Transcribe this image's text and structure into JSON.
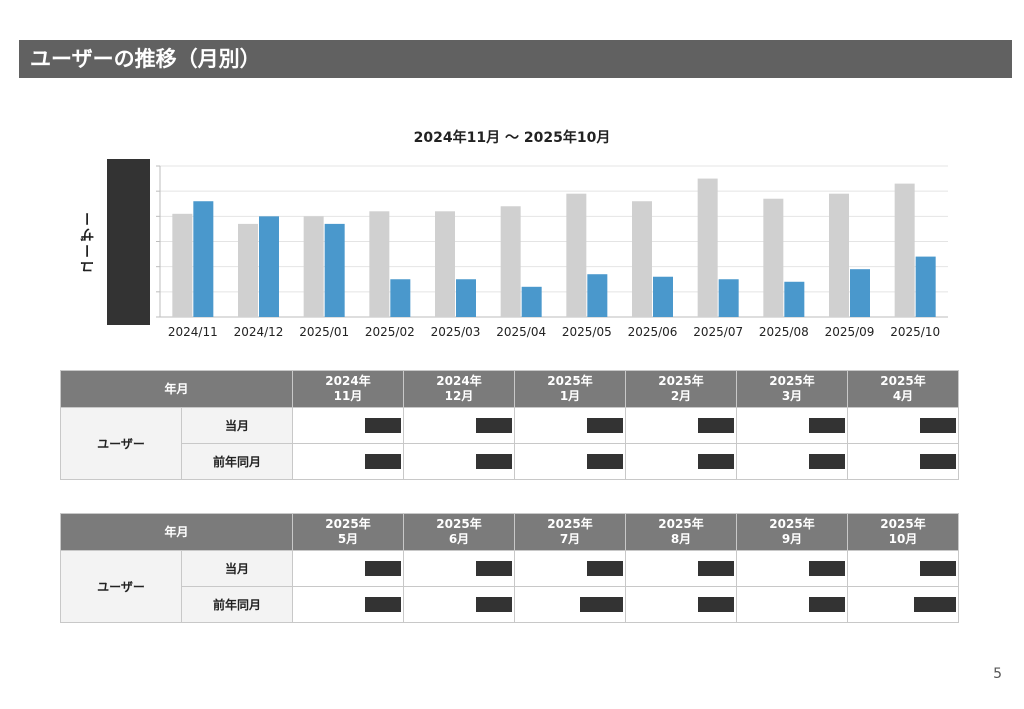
{
  "header": {
    "title": "ユーザーの推移（月別）"
  },
  "chart_data": {
    "type": "bar",
    "title": "2024年11月 ～ 2025年10月",
    "ylabel": "ユーザー",
    "categories": [
      "2024/11",
      "2024/12",
      "2025/01",
      "2025/02",
      "2025/03",
      "2025/04",
      "2025/05",
      "2025/06",
      "2025/07",
      "2025/08",
      "2025/09",
      "2025/10"
    ],
    "series": [
      {
        "values": [
          4.1,
          3.7,
          4.0,
          4.2,
          4.2,
          4.4,
          4.9,
          4.6,
          5.5,
          4.7,
          4.9,
          5.3
        ]
      },
      {
        "values": [
          4.6,
          4.0,
          3.7,
          1.5,
          1.5,
          1.2,
          1.7,
          1.6,
          1.5,
          1.4,
          1.9,
          2.4
        ]
      }
    ],
    "ylim": [
      0,
      6
    ],
    "grid": true,
    "colors": [
      "#d0d0d0",
      "#4a98cc"
    ]
  },
  "tables": [
    {
      "corner": "年月",
      "columns": [
        {
          "year": "2024年",
          "month": "11月"
        },
        {
          "year": "2024年",
          "month": "12月"
        },
        {
          "year": "2025年",
          "month": "1月"
        },
        {
          "year": "2025年",
          "month": "2月"
        },
        {
          "year": "2025年",
          "month": "3月"
        },
        {
          "year": "2025年",
          "month": "4月"
        }
      ],
      "row_group": "ユーザー",
      "rows": [
        {
          "label": "当月"
        },
        {
          "label": "前年同月"
        }
      ]
    },
    {
      "corner": "年月",
      "columns": [
        {
          "year": "2025年",
          "month": "5月"
        },
        {
          "year": "2025年",
          "month": "6月"
        },
        {
          "year": "2025年",
          "month": "7月"
        },
        {
          "year": "2025年",
          "month": "8月"
        },
        {
          "year": "2025年",
          "month": "9月"
        },
        {
          "year": "2025年",
          "month": "10月"
        }
      ],
      "row_group": "ユーザー",
      "rows": [
        {
          "label": "当月"
        },
        {
          "label": "前年同月"
        }
      ]
    }
  ],
  "page_number": "5"
}
